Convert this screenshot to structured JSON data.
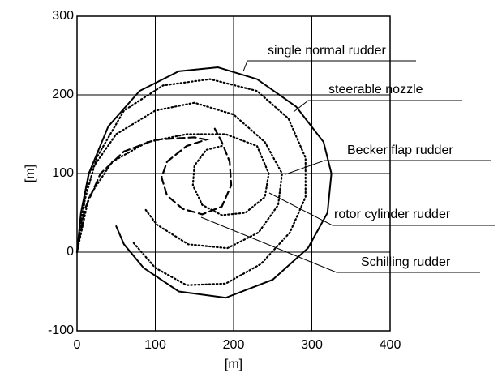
{
  "chart_data": {
    "type": "line",
    "xlabel": "[m]",
    "ylabel": "[m]",
    "xlim": [
      0,
      400
    ],
    "ylim": [
      -100,
      300
    ],
    "xticks": [
      0,
      100,
      200,
      300,
      400
    ],
    "yticks": [
      -100,
      0,
      100,
      200,
      300
    ],
    "grid": true,
    "series": [
      {
        "name": "single normal rudder",
        "color": "#000000",
        "dash": "solid",
        "x": [
          0,
          5,
          15,
          40,
          80,
          130,
          180,
          230,
          280,
          315,
          325,
          320,
          295,
          250,
          190,
          130,
          85,
          60,
          50
        ],
        "values": [
          0,
          50,
          100,
          160,
          205,
          230,
          235,
          220,
          185,
          140,
          100,
          50,
          5,
          -35,
          -58,
          -50,
          -20,
          10,
          33
        ]
      },
      {
        "name": "steerable nozzle",
        "color": "#000000",
        "dash": "dotted",
        "x": [
          0,
          8,
          25,
          60,
          110,
          170,
          230,
          270,
          292,
          292,
          272,
          235,
          190,
          140,
          100,
          72
        ],
        "values": [
          0,
          60,
          120,
          180,
          212,
          220,
          205,
          170,
          120,
          70,
          25,
          -15,
          -40,
          -42,
          -20,
          12
        ]
      },
      {
        "name": "Becker flap rudder",
        "color": "#000000",
        "dash": "dotted",
        "x": [
          0,
          15,
          50,
          100,
          150,
          200,
          240,
          262,
          257,
          232,
          192,
          142,
          102,
          86
        ],
        "values": [
          0,
          100,
          150,
          180,
          190,
          175,
          140,
          100,
          60,
          25,
          5,
          10,
          35,
          56
        ]
      },
      {
        "name": "rotor cylinder rudder",
        "color": "#000000",
        "dash": "dotted",
        "x": [
          0,
          15,
          45,
          90,
          140,
          190,
          230,
          245,
          240,
          215,
          185,
          160,
          148,
          150,
          165,
          185
        ],
        "values": [
          0,
          70,
          115,
          140,
          150,
          150,
          135,
          100,
          70,
          50,
          47,
          60,
          85,
          110,
          130,
          135
        ]
      },
      {
        "name": "Schilling rudder",
        "color": "#000000",
        "dash": "dashed",
        "x": [
          0,
          10,
          30,
          60,
          100,
          150,
          165,
          140,
          115,
          108,
          115,
          135,
          160,
          185,
          197,
          195,
          185,
          176
        ],
        "values": [
          0,
          55,
          100,
          128,
          143,
          146,
          143,
          135,
          115,
          95,
          72,
          55,
          48,
          58,
          85,
          115,
          140,
          157
        ]
      }
    ]
  }
}
